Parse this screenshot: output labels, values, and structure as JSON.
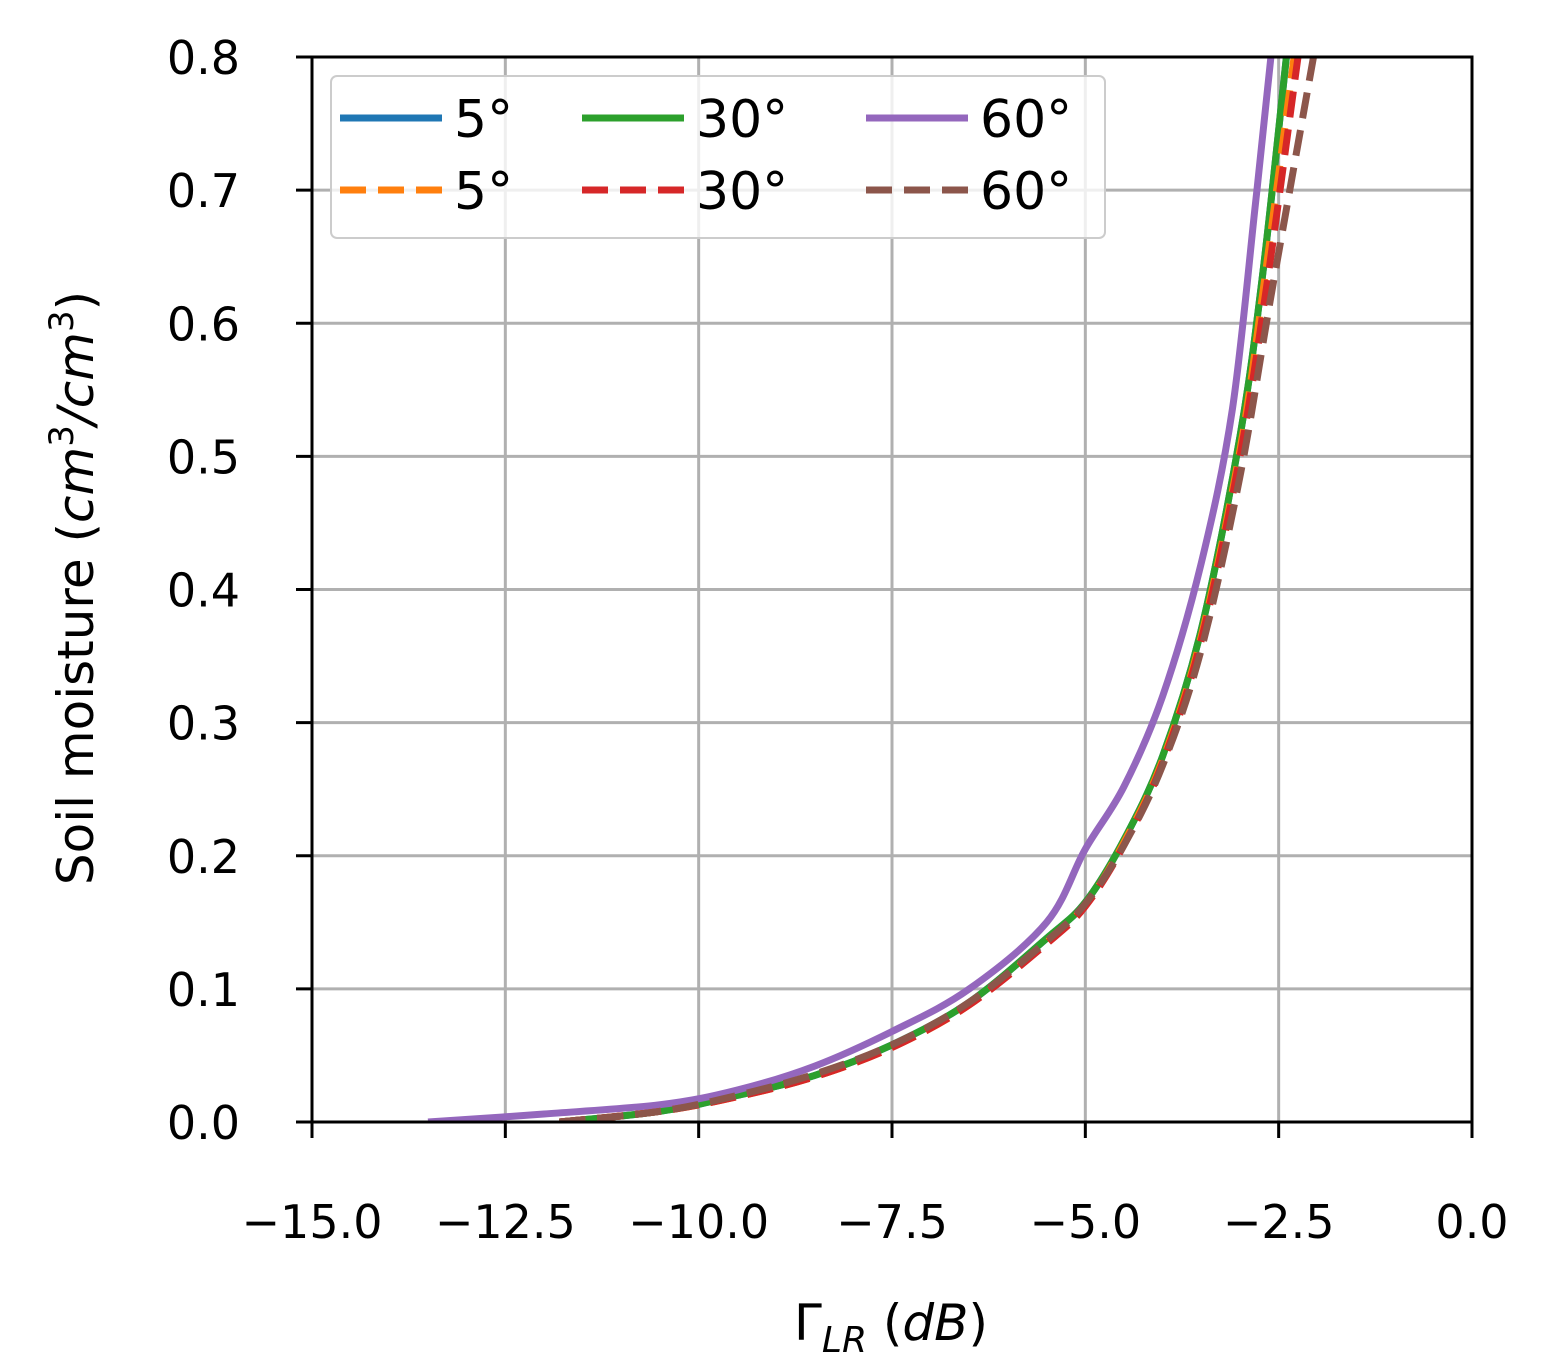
{
  "chart_data": {
    "type": "line",
    "title": "",
    "xlabel": {
      "main": "Γ",
      "sub": "LR",
      "unit": "(dB)",
      "unit_inner": "dB"
    },
    "ylabel": {
      "prefix": "Soil moisture (",
      "unit_a": "cm",
      "exp_a": "3",
      "slash": "/",
      "unit_b": "cm",
      "exp_b": "3",
      "suffix": ")"
    },
    "xlim": [
      -15.0,
      0.0
    ],
    "ylim": [
      0.0,
      0.8
    ],
    "xticks": [
      -15.0,
      -12.5,
      -10.0,
      -7.5,
      -5.0,
      -2.5,
      0.0
    ],
    "xtick_labels": [
      "−15.0",
      "−12.5",
      "−10.0",
      "−7.5",
      "−5.0",
      "−2.5",
      "0.0"
    ],
    "yticks": [
      0.0,
      0.1,
      0.2,
      0.3,
      0.4,
      0.5,
      0.6,
      0.7,
      0.8
    ],
    "ytick_labels": [
      "0.0",
      "0.1",
      "0.2",
      "0.3",
      "0.4",
      "0.5",
      "0.6",
      "0.7",
      "0.8"
    ],
    "grid": true,
    "legend": {
      "placement": "top-left",
      "columns": 3
    },
    "series": [
      {
        "name": "5°",
        "color": "#1f77b4",
        "dash": "solid",
        "points": [
          [
            -11.8,
            0.0
          ],
          [
            -10.5,
            0.008
          ],
          [
            -9.5,
            0.02
          ],
          [
            -8.5,
            0.035
          ],
          [
            -7.5,
            0.058
          ],
          [
            -6.5,
            0.09
          ],
          [
            -5.5,
            0.138
          ],
          [
            -5.0,
            0.165
          ],
          [
            -4.5,
            0.212
          ],
          [
            -4.0,
            0.275
          ],
          [
            -3.5,
            0.37
          ],
          [
            -3.0,
            0.515
          ],
          [
            -2.7,
            0.64
          ],
          [
            -2.4,
            0.8
          ]
        ]
      },
      {
        "name": "30°",
        "color": "#2ca02c",
        "dash": "solid",
        "points": [
          [
            -11.8,
            0.0
          ],
          [
            -10.5,
            0.008
          ],
          [
            -9.5,
            0.02
          ],
          [
            -8.5,
            0.035
          ],
          [
            -7.5,
            0.058
          ],
          [
            -6.5,
            0.09
          ],
          [
            -5.5,
            0.138
          ],
          [
            -5.0,
            0.165
          ],
          [
            -4.5,
            0.212
          ],
          [
            -4.0,
            0.275
          ],
          [
            -3.5,
            0.37
          ],
          [
            -3.0,
            0.515
          ],
          [
            -2.7,
            0.64
          ],
          [
            -2.4,
            0.8
          ]
        ]
      },
      {
        "name": "60°",
        "color": "#9467bd",
        "dash": "solid",
        "points": [
          [
            -13.5,
            0.0
          ],
          [
            -12.0,
            0.006
          ],
          [
            -10.5,
            0.013
          ],
          [
            -9.5,
            0.024
          ],
          [
            -8.5,
            0.042
          ],
          [
            -7.5,
            0.068
          ],
          [
            -6.5,
            0.1
          ],
          [
            -5.5,
            0.15
          ],
          [
            -5.0,
            0.205
          ],
          [
            -4.5,
            0.252
          ],
          [
            -4.0,
            0.32
          ],
          [
            -3.5,
            0.42
          ],
          [
            -3.1,
            0.535
          ],
          [
            -2.8,
            0.69
          ],
          [
            -2.6,
            0.8
          ]
        ]
      },
      {
        "name": "5°",
        "color": "#ff7f0e",
        "dash": "dashed",
        "points": [
          [
            -11.8,
            0.0
          ],
          [
            -10.5,
            0.008
          ],
          [
            -9.5,
            0.019
          ],
          [
            -8.5,
            0.034
          ],
          [
            -7.5,
            0.056
          ],
          [
            -6.5,
            0.088
          ],
          [
            -5.5,
            0.135
          ],
          [
            -5.0,
            0.163
          ],
          [
            -4.5,
            0.21
          ],
          [
            -4.0,
            0.272
          ],
          [
            -3.5,
            0.365
          ],
          [
            -3.0,
            0.505
          ],
          [
            -2.7,
            0.625
          ],
          [
            -2.3,
            0.8
          ]
        ]
      },
      {
        "name": "30°",
        "color": "#d62728",
        "dash": "dashed",
        "points": [
          [
            -11.8,
            0.0
          ],
          [
            -10.5,
            0.008
          ],
          [
            -9.5,
            0.019
          ],
          [
            -8.5,
            0.034
          ],
          [
            -7.5,
            0.056
          ],
          [
            -6.5,
            0.088
          ],
          [
            -5.5,
            0.134
          ],
          [
            -5.0,
            0.162
          ],
          [
            -4.5,
            0.208
          ],
          [
            -4.0,
            0.27
          ],
          [
            -3.5,
            0.362
          ],
          [
            -3.0,
            0.5
          ],
          [
            -2.65,
            0.63
          ],
          [
            -2.25,
            0.8
          ]
        ]
      },
      {
        "name": "60°",
        "color": "#8c564b",
        "dash": "dashed",
        "points": [
          [
            -11.8,
            0.0
          ],
          [
            -10.5,
            0.008
          ],
          [
            -9.5,
            0.02
          ],
          [
            -8.5,
            0.036
          ],
          [
            -7.5,
            0.058
          ],
          [
            -6.5,
            0.09
          ],
          [
            -5.5,
            0.136
          ],
          [
            -5.0,
            0.164
          ],
          [
            -4.5,
            0.208
          ],
          [
            -4.0,
            0.268
          ],
          [
            -3.5,
            0.355
          ],
          [
            -3.0,
            0.485
          ],
          [
            -2.6,
            0.62
          ],
          [
            -2.05,
            0.8
          ]
        ]
      }
    ]
  }
}
